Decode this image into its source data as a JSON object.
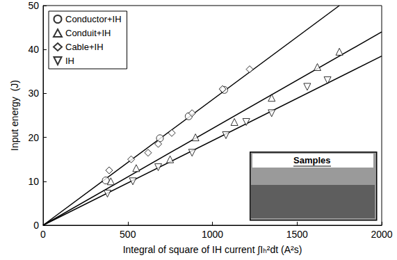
{
  "chart_data": {
    "type": "scatter",
    "xlabel": "Integral of square of IH current ∫Iₕ²dt (A²s)",
    "ylabel": "Input energy  (J)",
    "xlim": [
      0,
      2000
    ],
    "xticks": [
      0,
      500,
      1000,
      1500,
      2000
    ],
    "ylim": [
      0,
      50
    ],
    "yticks": [
      0,
      10,
      20,
      30,
      40,
      50
    ],
    "grid": false,
    "legend": "upper left",
    "annotations": [
      "Samples"
    ],
    "series": [
      {
        "name": "Conductor+IH",
        "marker": "circle",
        "color": "#000000",
        "x": [
          370,
          690,
          860,
          1070
        ],
        "values": [
          10.2,
          19.8,
          24.8,
          30.8
        ]
      },
      {
        "name": "Conduit+IH",
        "marker": "triangle",
        "color": "#000000",
        "x": [
          400,
          550,
          750,
          900,
          1130,
          1350,
          1620,
          1750
        ],
        "values": [
          10,
          13,
          15,
          20,
          23.5,
          29,
          36,
          39.5
        ]
      },
      {
        "name": "Cable+IH",
        "marker": "diamond",
        "color": "#000000",
        "x": [
          390,
          520,
          620,
          680,
          760,
          880,
          1060,
          1220
        ],
        "values": [
          12.5,
          15,
          16.5,
          18.5,
          21,
          25.5,
          31,
          35.5
        ]
      },
      {
        "name": "IH",
        "marker": "triangle_down",
        "color": "#000000",
        "x": [
          380,
          530,
          680,
          880,
          1080,
          1200,
          1350,
          1560,
          1680
        ],
        "values": [
          7.2,
          10,
          13.2,
          16.5,
          20.5,
          23.5,
          25.5,
          31.5,
          33
        ]
      },
      {
        "type": "line",
        "line_style": "solid",
        "color": "#000000",
        "x": [
          0,
          1750
        ],
        "values": [
          0,
          50
        ]
      },
      {
        "type": "line",
        "line_style": "solid",
        "color": "#000000",
        "x": [
          0,
          2000
        ],
        "values": [
          0,
          44
        ]
      },
      {
        "type": "line",
        "line_style": "solid",
        "color": "#000000",
        "x": [
          0,
          2000
        ],
        "values": [
          0,
          38.5
        ]
      }
    ]
  }
}
